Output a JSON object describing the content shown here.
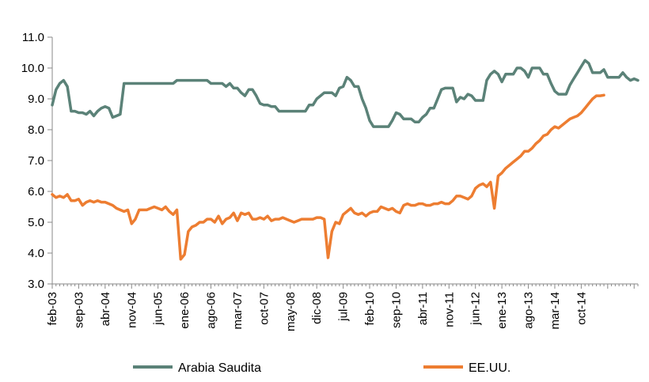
{
  "chart_data": {
    "type": "line",
    "title": "",
    "xlabel": "",
    "ylabel": "",
    "ylim": [
      3.0,
      11.0
    ],
    "y_ticks": [
      "3.0",
      "4.0",
      "5.0",
      "6.0",
      "7.0",
      "8.0",
      "9.0",
      "10.0",
      "11.0"
    ],
    "x_tick_labels": [
      "feb-03",
      "sep-03",
      "abr-04",
      "nov-04",
      "jun-05",
      "ene-06",
      "ago-06",
      "mar-07",
      "oct-07",
      "may-08",
      "dic-08",
      "jul-09",
      "feb-10",
      "sep-10",
      "abr-11",
      "nov-11",
      "jun-12",
      "ene-13",
      "ago-13",
      "mar-14",
      "oct-14"
    ],
    "x_start": "feb-03",
    "x_end": "dec-14",
    "grid": false,
    "legend_position": "bottom",
    "series": [
      {
        "name": "Arabia Saudita",
        "color": "#5b8278",
        "points": [
          [
            0,
            8.8
          ],
          [
            1,
            9.3
          ],
          [
            2,
            9.5
          ],
          [
            3,
            9.6
          ],
          [
            4,
            9.4
          ],
          [
            5,
            8.6
          ],
          [
            6,
            8.6
          ],
          [
            7,
            8.55
          ],
          [
            8,
            8.55
          ],
          [
            9,
            8.5
          ],
          [
            10,
            8.6
          ],
          [
            11,
            8.45
          ],
          [
            12,
            8.6
          ],
          [
            13,
            8.7
          ],
          [
            14,
            8.75
          ],
          [
            15,
            8.7
          ],
          [
            16,
            8.4
          ],
          [
            17,
            8.45
          ],
          [
            18,
            8.5
          ],
          [
            19,
            9.5
          ],
          [
            20,
            9.5
          ],
          [
            22,
            9.5
          ],
          [
            25,
            9.5
          ],
          [
            28,
            9.5
          ],
          [
            30,
            9.5
          ],
          [
            32,
            9.5
          ],
          [
            33,
            9.6
          ],
          [
            36,
            9.6
          ],
          [
            39,
            9.6
          ],
          [
            41,
            9.6
          ],
          [
            42,
            9.5
          ],
          [
            45,
            9.5
          ],
          [
            46,
            9.4
          ],
          [
            47,
            9.5
          ],
          [
            48,
            9.35
          ],
          [
            49,
            9.35
          ],
          [
            50,
            9.2
          ],
          [
            51,
            9.1
          ],
          [
            52,
            9.3
          ],
          [
            53,
            9.3
          ],
          [
            54,
            9.1
          ],
          [
            55,
            8.85
          ],
          [
            56,
            8.8
          ],
          [
            57,
            8.8
          ],
          [
            58,
            8.75
          ],
          [
            59,
            8.75
          ],
          [
            60,
            8.6
          ],
          [
            62,
            8.6
          ],
          [
            64,
            8.6
          ],
          [
            66,
            8.6
          ],
          [
            67,
            8.6
          ],
          [
            68,
            8.8
          ],
          [
            69,
            8.8
          ],
          [
            70,
            9.0
          ],
          [
            71,
            9.1
          ],
          [
            72,
            9.2
          ],
          [
            74,
            9.2
          ],
          [
            75,
            9.1
          ],
          [
            76,
            9.35
          ],
          [
            77,
            9.4
          ],
          [
            78,
            9.7
          ],
          [
            79,
            9.6
          ],
          [
            80,
            9.4
          ],
          [
            81,
            9.4
          ],
          [
            82,
            9.0
          ],
          [
            83,
            8.7
          ],
          [
            84,
            8.3
          ],
          [
            85,
            8.1
          ],
          [
            86,
            8.1
          ],
          [
            88,
            8.1
          ],
          [
            89,
            8.1
          ],
          [
            90,
            8.3
          ],
          [
            91,
            8.55
          ],
          [
            92,
            8.5
          ],
          [
            93,
            8.35
          ],
          [
            95,
            8.35
          ],
          [
            96,
            8.25
          ],
          [
            97,
            8.25
          ],
          [
            98,
            8.4
          ],
          [
            99,
            8.5
          ],
          [
            100,
            8.7
          ],
          [
            101,
            8.7
          ],
          [
            102,
            9.0
          ],
          [
            103,
            9.3
          ],
          [
            104,
            9.35
          ],
          [
            106,
            9.35
          ],
          [
            107,
            8.9
          ],
          [
            108,
            9.05
          ],
          [
            109,
            9.0
          ],
          [
            110,
            9.15
          ],
          [
            111,
            9.1
          ],
          [
            112,
            8.95
          ],
          [
            114,
            8.95
          ],
          [
            115,
            9.6
          ],
          [
            116,
            9.8
          ],
          [
            117,
            9.9
          ],
          [
            118,
            9.8
          ],
          [
            119,
            9.55
          ],
          [
            120,
            9.8
          ],
          [
            122,
            9.8
          ],
          [
            123,
            10.0
          ],
          [
            124,
            10.0
          ],
          [
            125,
            9.9
          ],
          [
            126,
            9.7
          ],
          [
            127,
            10.0
          ],
          [
            129,
            10.0
          ],
          [
            130,
            9.8
          ],
          [
            131,
            9.8
          ],
          [
            132,
            9.5
          ],
          [
            133,
            9.25
          ],
          [
            134,
            9.15
          ],
          [
            136,
            9.15
          ],
          [
            137,
            9.45
          ],
          [
            138,
            9.65
          ],
          [
            139,
            9.85
          ],
          [
            140,
            10.05
          ],
          [
            141,
            10.25
          ],
          [
            142,
            10.15
          ],
          [
            143,
            9.85
          ],
          [
            145,
            9.85
          ],
          [
            146,
            9.95
          ],
          [
            147,
            9.7
          ],
          [
            149,
            9.7
          ],
          [
            150,
            9.7
          ],
          [
            151,
            9.85
          ],
          [
            152,
            9.7
          ],
          [
            153,
            9.6
          ],
          [
            154,
            9.65
          ],
          [
            155,
            9.6
          ]
        ]
      },
      {
        "name": "EE.UU.",
        "color": "#ed7d31",
        "points": [
          [
            0,
            5.9
          ],
          [
            1,
            5.8
          ],
          [
            2,
            5.85
          ],
          [
            3,
            5.8
          ],
          [
            4,
            5.9
          ],
          [
            5,
            5.7
          ],
          [
            6,
            5.7
          ],
          [
            7,
            5.75
          ],
          [
            8,
            5.55
          ],
          [
            9,
            5.65
          ],
          [
            10,
            5.7
          ],
          [
            11,
            5.65
          ],
          [
            12,
            5.7
          ],
          [
            13,
            5.65
          ],
          [
            14,
            5.65
          ],
          [
            15,
            5.6
          ],
          [
            16,
            5.55
          ],
          [
            17,
            5.45
          ],
          [
            18,
            5.4
          ],
          [
            19,
            5.35
          ],
          [
            20,
            5.4
          ],
          [
            21,
            4.95
          ],
          [
            22,
            5.1
          ],
          [
            23,
            5.4
          ],
          [
            24,
            5.4
          ],
          [
            25,
            5.4
          ],
          [
            26,
            5.45
          ],
          [
            27,
            5.5
          ],
          [
            28,
            5.45
          ],
          [
            29,
            5.4
          ],
          [
            30,
            5.5
          ],
          [
            31,
            5.35
          ],
          [
            32,
            5.25
          ],
          [
            33,
            5.4
          ],
          [
            34,
            3.8
          ],
          [
            35,
            3.95
          ],
          [
            36,
            4.7
          ],
          [
            37,
            4.85
          ],
          [
            38,
            4.9
          ],
          [
            39,
            5.0
          ],
          [
            40,
            5.0
          ],
          [
            41,
            5.1
          ],
          [
            42,
            5.1
          ],
          [
            43,
            5.0
          ],
          [
            44,
            5.2
          ],
          [
            45,
            4.95
          ],
          [
            46,
            5.1
          ],
          [
            47,
            5.15
          ],
          [
            48,
            5.3
          ],
          [
            49,
            5.05
          ],
          [
            50,
            5.3
          ],
          [
            51,
            5.25
          ],
          [
            52,
            5.3
          ],
          [
            53,
            5.1
          ],
          [
            54,
            5.1
          ],
          [
            55,
            5.15
          ],
          [
            56,
            5.1
          ],
          [
            57,
            5.2
          ],
          [
            58,
            5.05
          ],
          [
            59,
            5.1
          ],
          [
            60,
            5.1
          ],
          [
            61,
            5.15
          ],
          [
            62,
            5.1
          ],
          [
            63,
            5.05
          ],
          [
            64,
            5.0
          ],
          [
            65,
            5.05
          ],
          [
            66,
            5.1
          ],
          [
            67,
            5.1
          ],
          [
            68,
            5.1
          ],
          [
            69,
            5.1
          ],
          [
            70,
            5.15
          ],
          [
            71,
            5.15
          ],
          [
            72,
            5.1
          ],
          [
            73,
            3.85
          ],
          [
            74,
            4.7
          ],
          [
            75,
            5.0
          ],
          [
            76,
            4.95
          ],
          [
            77,
            5.25
          ],
          [
            78,
            5.35
          ],
          [
            79,
            5.45
          ],
          [
            80,
            5.3
          ],
          [
            81,
            5.25
          ],
          [
            82,
            5.3
          ],
          [
            83,
            5.2
          ],
          [
            84,
            5.3
          ],
          [
            85,
            5.35
          ],
          [
            86,
            5.35
          ],
          [
            87,
            5.5
          ],
          [
            88,
            5.45
          ],
          [
            89,
            5.4
          ],
          [
            90,
            5.45
          ],
          [
            91,
            5.35
          ],
          [
            92,
            5.3
          ],
          [
            93,
            5.55
          ],
          [
            94,
            5.6
          ],
          [
            95,
            5.55
          ],
          [
            96,
            5.55
          ],
          [
            97,
            5.6
          ],
          [
            98,
            5.6
          ],
          [
            99,
            5.55
          ],
          [
            100,
            5.55
          ],
          [
            101,
            5.6
          ],
          [
            102,
            5.6
          ],
          [
            103,
            5.65
          ],
          [
            104,
            5.6
          ],
          [
            105,
            5.6
          ],
          [
            106,
            5.7
          ],
          [
            107,
            5.85
          ],
          [
            108,
            5.85
          ],
          [
            109,
            5.8
          ],
          [
            110,
            5.75
          ],
          [
            111,
            5.85
          ],
          [
            112,
            6.1
          ],
          [
            113,
            6.2
          ],
          [
            114,
            6.25
          ],
          [
            115,
            6.15
          ],
          [
            116,
            6.3
          ],
          [
            117,
            5.45
          ],
          [
            118,
            6.5
          ],
          [
            119,
            6.6
          ],
          [
            120,
            6.75
          ],
          [
            121,
            6.85
          ],
          [
            122,
            6.95
          ],
          [
            123,
            7.05
          ],
          [
            124,
            7.15
          ],
          [
            125,
            7.3
          ],
          [
            126,
            7.3
          ],
          [
            127,
            7.4
          ],
          [
            128,
            7.55
          ],
          [
            129,
            7.65
          ],
          [
            130,
            7.8
          ],
          [
            131,
            7.85
          ],
          [
            132,
            8.0
          ],
          [
            133,
            8.1
          ],
          [
            134,
            8.05
          ],
          [
            135,
            8.15
          ],
          [
            136,
            8.25
          ],
          [
            137,
            8.35
          ],
          [
            138,
            8.4
          ],
          [
            139,
            8.45
          ],
          [
            140,
            8.55
          ],
          [
            141,
            8.7
          ],
          [
            142,
            8.85
          ],
          [
            143,
            9.0
          ],
          [
            144,
            9.1
          ],
          [
            145,
            9.1
          ],
          [
            146,
            9.12
          ]
        ]
      }
    ]
  }
}
